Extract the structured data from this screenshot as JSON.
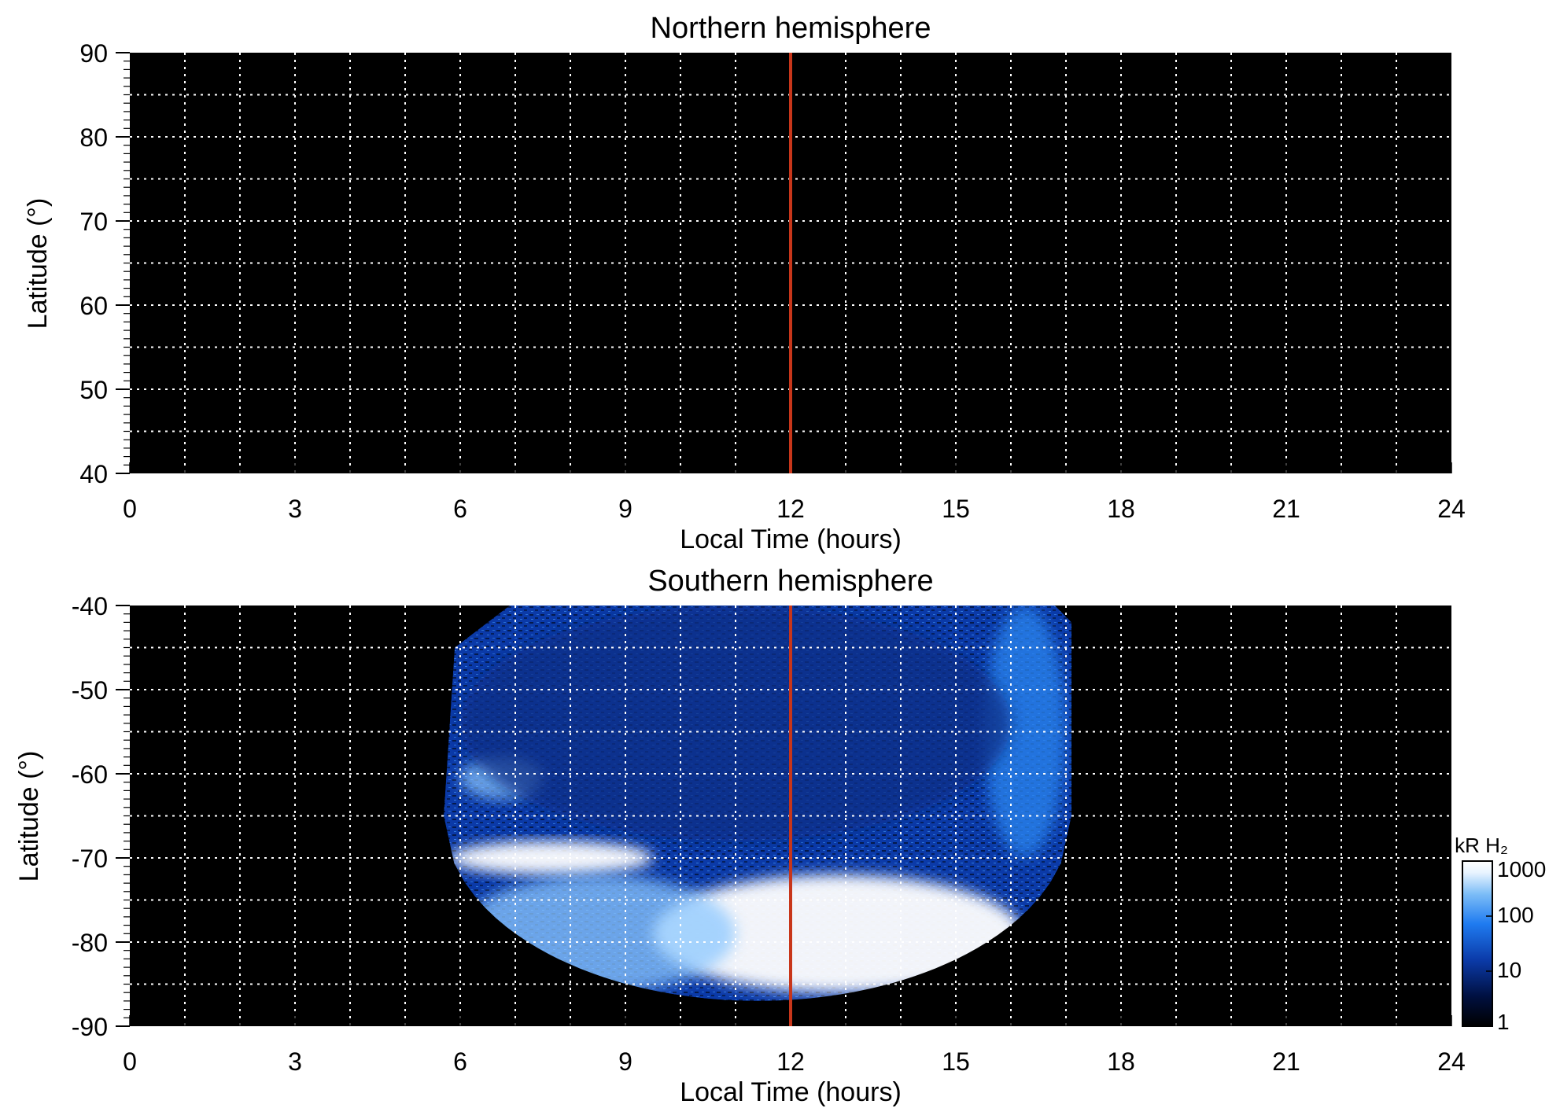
{
  "colors": {
    "background": "#ffffff",
    "plot_bg": "#000000",
    "grid": "#ffffff",
    "noon_line": "#c8361a",
    "colormap": [
      "#000000",
      "#001040",
      "#0b3aa8",
      "#1f7bf0",
      "#7cbdf7",
      "#e8f4ff",
      "#ffffff"
    ]
  },
  "chart_data": [
    {
      "type": "heatmap",
      "title": "Northern hemisphere",
      "xlabel": "Local Time (hours)",
      "ylabel": "Latitude (°)",
      "xlim": [
        0,
        24
      ],
      "ylim": [
        40,
        90
      ],
      "xticks": [
        "0",
        "3",
        "6",
        "9",
        "12",
        "15",
        "18",
        "21",
        "24"
      ],
      "yticks": [
        "40",
        "50",
        "60",
        "70",
        "80",
        "90"
      ],
      "grid": true,
      "reference_line_x": 12,
      "coverage": "none",
      "emission": []
    },
    {
      "type": "heatmap",
      "title": "Southern hemisphere",
      "xlabel": "Local Time (hours)",
      "ylabel": "Latitude (°)",
      "xlim": [
        0,
        24
      ],
      "ylim": [
        -90,
        -40
      ],
      "xticks": [
        "0",
        "3",
        "6",
        "9",
        "12",
        "15",
        "18",
        "21",
        "24"
      ],
      "yticks": [
        "-40",
        "-50",
        "-60",
        "-70",
        "-80",
        "-90"
      ],
      "grid": true,
      "reference_line_x": 12,
      "coverage": {
        "lt_range": [
          5.7,
          17.1
        ],
        "lat_top": -40,
        "lat_bottom_at_noon": -87
      },
      "emission": [
        {
          "lt": [
            5.8,
            9.5
          ],
          "lat": [
            -68,
            -72
          ],
          "brightness_kR": 1000
        },
        {
          "lt": [
            9.5,
            16.2
          ],
          "lat": [
            -72,
            -86
          ],
          "brightness_kR": 1000
        },
        {
          "lt": [
            6.0,
            7.5
          ],
          "lat": [
            -58,
            -63
          ],
          "brightness_kR": 200
        },
        {
          "lt": [
            6.0,
            11.0
          ],
          "lat": [
            -72,
            -86
          ],
          "brightness_kR": 300
        },
        {
          "lt": [
            15.5,
            17.0
          ],
          "lat": [
            -40,
            -70
          ],
          "brightness_kR": 80
        },
        {
          "lt": [
            6.0,
            16.0
          ],
          "lat": [
            -40,
            -68
          ],
          "brightness_kR": 10
        }
      ],
      "colorbar": {
        "label": "kR H₂",
        "scale": "log",
        "ticks": [
          "1",
          "10",
          "100",
          "1000"
        ],
        "range": [
          1,
          1000
        ]
      }
    }
  ]
}
